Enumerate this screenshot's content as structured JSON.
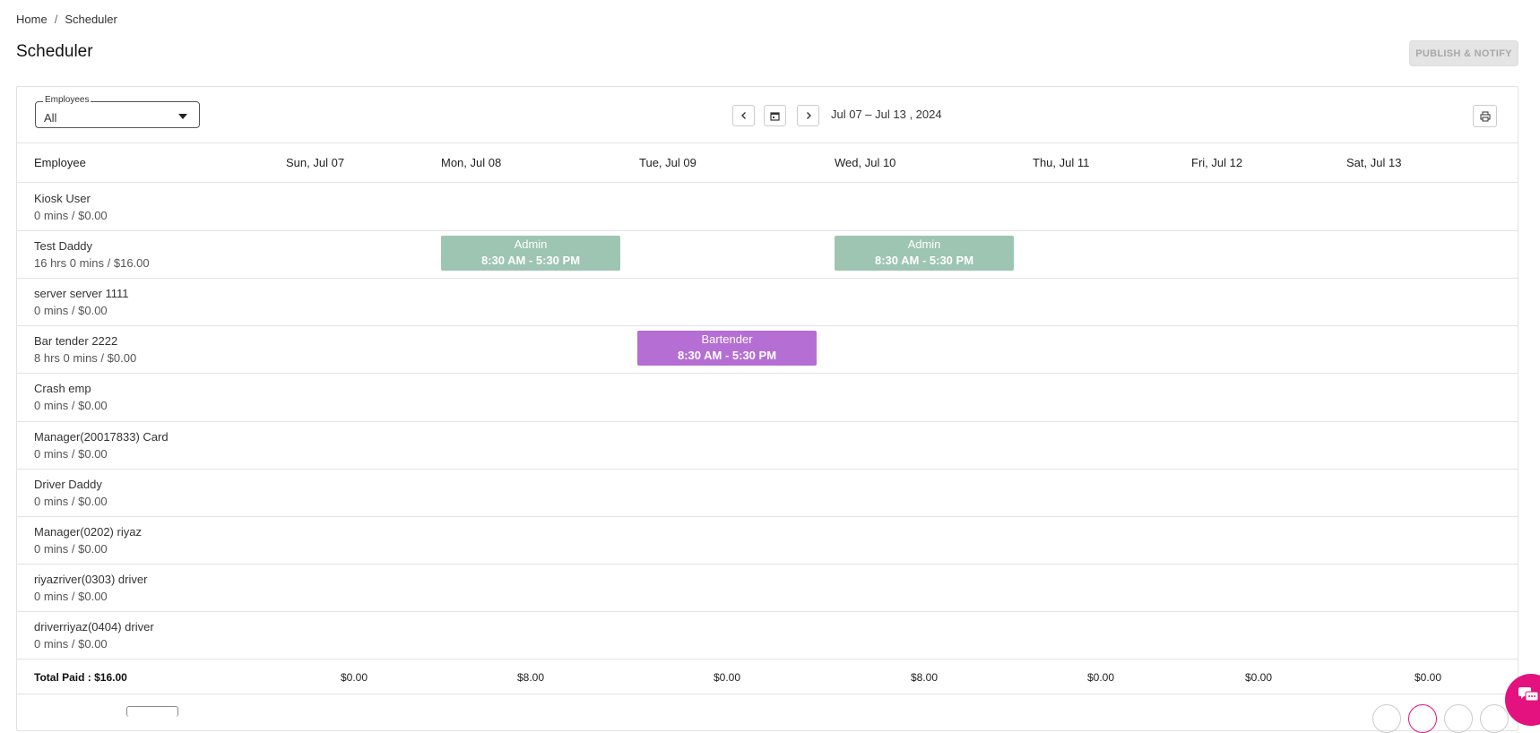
{
  "breadcrumb": {
    "home": "Home",
    "separator": "/",
    "current": "Scheduler"
  },
  "page": {
    "title": "Scheduler",
    "publish_label": "PUBLISH & NOTIFY"
  },
  "filters": {
    "employees_label": "Employees",
    "employees_value": "All"
  },
  "nav": {
    "date_range": "Jul 07 – Jul 13 , 2024"
  },
  "columns": {
    "employee": "Employee",
    "days": [
      "Sun, Jul 07",
      "Mon, Jul 08",
      "Tue, Jul 09",
      "Wed, Jul 10",
      "Thu, Jul 11",
      "Fri, Jul 12",
      "Sat, Jul 13"
    ]
  },
  "rows": [
    {
      "name": "Kiosk User",
      "summary": "0 mins / $0.00"
    },
    {
      "name": "Test Daddy",
      "summary": "16 hrs 0 mins / $16.00"
    },
    {
      "name": "server server 1111",
      "summary": "0 mins / $0.00"
    },
    {
      "name": "Bar tender 2222",
      "summary": "8 hrs 0 mins / $0.00"
    },
    {
      "name": "Crash emp",
      "summary": "0 mins / $0.00"
    },
    {
      "name": "Manager(20017833) Card",
      "summary": "0 mins / $0.00"
    },
    {
      "name": "Driver Daddy",
      "summary": "0 mins / $0.00"
    },
    {
      "name": "Manager(0202) riyaz",
      "summary": "0 mins / $0.00"
    },
    {
      "name": "riyazriver(0303) driver",
      "summary": "0 mins / $0.00"
    },
    {
      "name": "driverriyaz(0404) driver",
      "summary": "0 mins / $0.00"
    }
  ],
  "shifts": [
    {
      "role": "Admin",
      "time": "8:30 AM - 5:30 PM",
      "color": "#9dc5b2"
    },
    {
      "role": "Admin",
      "time": "8:30 AM - 5:30 PM",
      "color": "#9dc5b2"
    },
    {
      "role": "Bartender",
      "time": "8:30 AM - 5:30 PM",
      "color": "#b56ed4"
    }
  ],
  "totals": {
    "label": "Total Paid : $16.00",
    "values": [
      "$0.00",
      "$8.00",
      "$0.00",
      "$8.00",
      "$0.00",
      "$0.00",
      "$0.00"
    ]
  },
  "icons": {
    "prev": "chevron-left-icon",
    "calendar": "calendar-icon",
    "next": "chevron-right-icon",
    "print": "printer-icon",
    "chat": "chat-icon"
  },
  "colors": {
    "accent": "#e3127e",
    "admin_shift": "#9dc5b2",
    "bartender_shift": "#b56ed4"
  }
}
